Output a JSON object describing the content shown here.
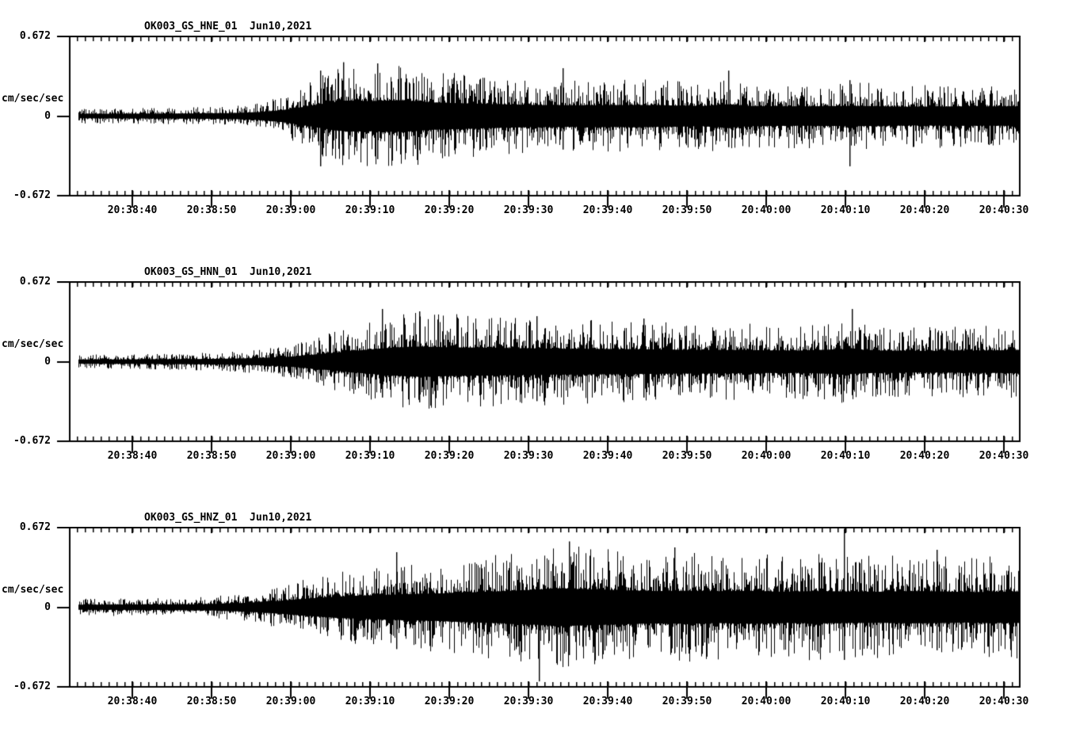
{
  "page": {
    "background": "#ffffff",
    "ink": "#000000"
  },
  "chart_data": {
    "type": "line",
    "subtype": "seismogram-3-component-record",
    "station_date": "Jun10,2021",
    "shared_x": {
      "axis_start_time": "20:38:32",
      "axis_duration_sec": 120.1,
      "minor_tick_interval_sec": 1,
      "major_tick_interval_sec": 10,
      "major_tick_offsets_sec": [
        8,
        18,
        28,
        38,
        48,
        58,
        68,
        78,
        88,
        98,
        108,
        118
      ],
      "major_tick_labels": [
        "20:38:40",
        "20:38:50",
        "20:39:00",
        "20:39:10",
        "20:39:20",
        "20:39:30",
        "20:39:40",
        "20:39:50",
        "20:40:00",
        "20:40:10",
        "20:40:20",
        "20:40:30"
      ]
    },
    "shared_y": {
      "label": "cm/sec/sec",
      "lim": [
        -0.672,
        0.672
      ],
      "tick_values": [
        "0.672",
        "0",
        "-0.672"
      ]
    },
    "panels": [
      {
        "title": "OK003_GS_HNE_01  Jun10,2021",
        "channel": "HNE",
        "seed": 20210611,
        "data_start_sec": 1.2,
        "envelope_t_sec_amp": [
          [
            1.2,
            0.062
          ],
          [
            8,
            0.066
          ],
          [
            15,
            0.072
          ],
          [
            20,
            0.08
          ],
          [
            24,
            0.11
          ],
          [
            27,
            0.17
          ],
          [
            30,
            0.27
          ],
          [
            33,
            0.38
          ],
          [
            35,
            0.43
          ],
          [
            38,
            0.42
          ],
          [
            42,
            0.44
          ],
          [
            46,
            0.38
          ],
          [
            52,
            0.34
          ],
          [
            58,
            0.31
          ],
          [
            65,
            0.3
          ],
          [
            72,
            0.31
          ],
          [
            80,
            0.28
          ],
          [
            83,
            0.33
          ],
          [
            86,
            0.28
          ],
          [
            92,
            0.27
          ],
          [
            100,
            0.28
          ],
          [
            106,
            0.26
          ],
          [
            112,
            0.27
          ],
          [
            120.1,
            0.27
          ]
        ],
        "notable_spikes_t_up_down": [
          [
            31.7,
            0.38,
            -0.42
          ],
          [
            34.6,
            0.45,
            -0.33
          ],
          [
            38.9,
            0.44,
            -0.36
          ],
          [
            62.3,
            0.4,
            -0.28
          ],
          [
            83.2,
            0.38,
            -0.26
          ],
          [
            98.5,
            0.3,
            -0.42
          ]
        ]
      },
      {
        "title": "OK003_GS_HNN_01  Jun10,2021",
        "channel": "HNN",
        "seed": 77130219,
        "data_start_sec": 1.2,
        "envelope_t_sec_amp": [
          [
            1.2,
            0.058
          ],
          [
            10,
            0.065
          ],
          [
            16,
            0.072
          ],
          [
            20,
            0.082
          ],
          [
            24,
            0.1
          ],
          [
            28,
            0.14
          ],
          [
            32,
            0.22
          ],
          [
            36,
            0.3
          ],
          [
            40,
            0.38
          ],
          [
            44,
            0.42
          ],
          [
            48,
            0.4
          ],
          [
            55,
            0.38
          ],
          [
            62,
            0.36
          ],
          [
            70,
            0.35
          ],
          [
            78,
            0.33
          ],
          [
            85,
            0.32
          ],
          [
            92,
            0.31
          ],
          [
            98,
            0.35
          ],
          [
            102,
            0.31
          ],
          [
            108,
            0.3
          ],
          [
            114,
            0.31
          ],
          [
            120.1,
            0.32
          ]
        ],
        "notable_spikes_t_up_down": [
          [
            39.5,
            0.44,
            -0.3
          ],
          [
            44.2,
            0.42,
            -0.34
          ],
          [
            59.0,
            0.38,
            -0.33
          ],
          [
            72.5,
            0.36,
            -0.3
          ],
          [
            98.8,
            0.44,
            -0.28
          ]
        ]
      },
      {
        "title": "OK003_GS_HNZ_01  Jun10,2021",
        "channel": "HNZ",
        "seed": 31415927,
        "data_start_sec": 1.2,
        "envelope_t_sec_amp": [
          [
            1.2,
            0.07
          ],
          [
            8,
            0.075
          ],
          [
            14,
            0.08
          ],
          [
            18,
            0.09
          ],
          [
            22,
            0.12
          ],
          [
            26,
            0.17
          ],
          [
            30,
            0.24
          ],
          [
            34,
            0.3
          ],
          [
            38,
            0.33
          ],
          [
            42,
            0.36
          ],
          [
            46,
            0.38
          ],
          [
            50,
            0.41
          ],
          [
            54,
            0.44
          ],
          [
            58,
            0.48
          ],
          [
            62,
            0.52
          ],
          [
            66,
            0.5
          ],
          [
            70,
            0.47
          ],
          [
            74,
            0.45
          ],
          [
            78,
            0.46
          ],
          [
            82,
            0.44
          ],
          [
            86,
            0.46
          ],
          [
            90,
            0.43
          ],
          [
            94,
            0.45
          ],
          [
            98,
            0.44
          ],
          [
            102,
            0.43
          ],
          [
            106,
            0.45
          ],
          [
            110,
            0.44
          ],
          [
            114,
            0.42
          ],
          [
            120.1,
            0.44
          ]
        ],
        "notable_spikes_t_up_down": [
          [
            41.3,
            0.46,
            -0.35
          ],
          [
            59.3,
            0.32,
            -0.62
          ],
          [
            63.1,
            0.55,
            -0.4
          ],
          [
            76.4,
            0.5,
            -0.38
          ],
          [
            97.8,
            0.655,
            -0.44
          ],
          [
            109.5,
            0.48,
            -0.36
          ]
        ]
      }
    ]
  }
}
